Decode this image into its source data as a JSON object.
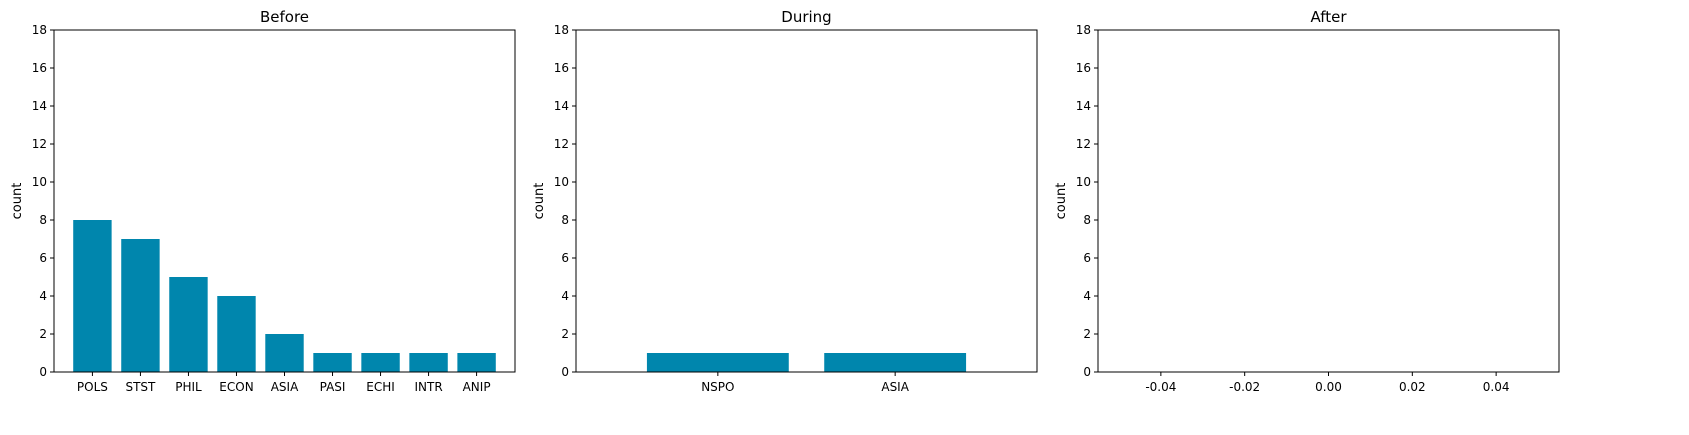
{
  "chart_data": [
    {
      "type": "bar",
      "title": "Before",
      "xlabel": "",
      "ylabel": "count",
      "categories": [
        "POLS",
        "STST",
        "PHIL",
        "ECON",
        "ASIA",
        "PASI",
        "ECHI",
        "INTR",
        "ANIP"
      ],
      "values": [
        8,
        7,
        5,
        4,
        2,
        1,
        1,
        1,
        1
      ],
      "ylim": [
        0,
        18
      ],
      "yticks": [
        0,
        2,
        4,
        6,
        8,
        10,
        12,
        14,
        16,
        18
      ],
      "color": "#0086AD"
    },
    {
      "type": "bar",
      "title": "During",
      "xlabel": "",
      "ylabel": "count",
      "categories": [
        "NSPO",
        "ASIA"
      ],
      "values": [
        1,
        1
      ],
      "ylim": [
        0,
        18
      ],
      "yticks": [
        0,
        2,
        4,
        6,
        8,
        10,
        12,
        14,
        16,
        18
      ],
      "color": "#0086AD"
    },
    {
      "type": "bar",
      "title": "After",
      "xlabel": "",
      "ylabel": "count",
      "categories": [],
      "values": [],
      "ylim": [
        0,
        18
      ],
      "yticks": [
        0,
        2,
        4,
        6,
        8,
        10,
        12,
        14,
        16,
        18
      ],
      "xlim": [
        -0.055,
        0.055
      ],
      "xticks": [
        "-0.04",
        "-0.02",
        "0.00",
        "0.02",
        "0.04"
      ],
      "xtick_values": [
        -0.04,
        -0.02,
        0.0,
        0.02,
        0.04
      ],
      "color": "#0086AD"
    }
  ]
}
